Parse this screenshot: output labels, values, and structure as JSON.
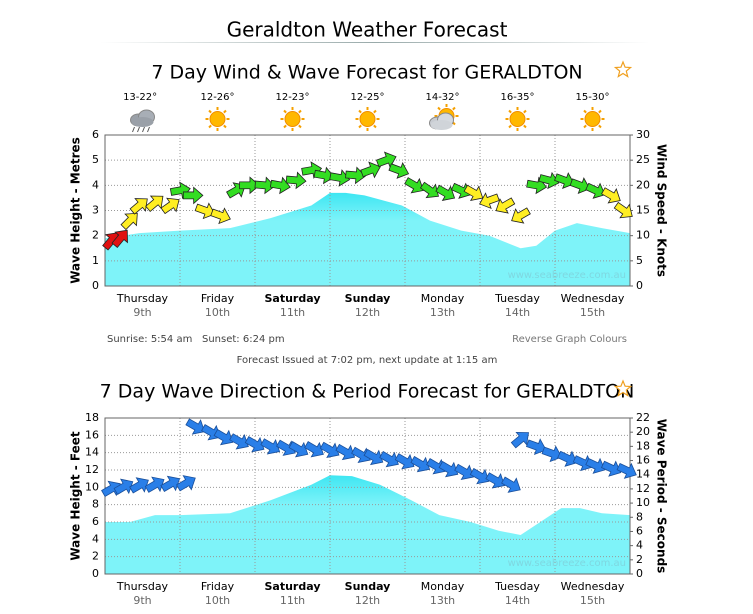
{
  "header": {
    "title": "Geraldton Weather Forecast"
  },
  "chart_data": [
    {
      "type": "wind-wave",
      "title": "7 Day Wind & Wave Forecast for GERALDTON",
      "temperatures": [
        "13-22°",
        "12-26°",
        "12-23°",
        "12-25°",
        "14-32°",
        "16-35°",
        "15-30°"
      ],
      "icons": [
        "storm",
        "sun",
        "sun",
        "sun",
        "cloud",
        "sun",
        "sun"
      ],
      "categories": [
        "Thursday",
        "Friday",
        "Saturday",
        "Sunday",
        "Monday",
        "Tuesday",
        "Wednesday"
      ],
      "dates": [
        "9th",
        "10th",
        "11th",
        "12th",
        "13th",
        "14th",
        "15th"
      ],
      "bold": [
        false,
        false,
        true,
        true,
        false,
        false,
        false
      ],
      "xlim": [
        0,
        168
      ],
      "ylim": [
        0,
        6
      ],
      "yticks": [
        0,
        1,
        2,
        3,
        4,
        5,
        6
      ],
      "y2lim": [
        0,
        30
      ],
      "y2ticks": [
        0,
        5,
        10,
        15,
        20,
        25,
        30
      ],
      "ylabel": "Wave Height - Metres",
      "y2label": "Wind Speed - Knots",
      "watermark": "www.seabreeze.com.au",
      "series": [
        {
          "type": "area",
          "color": "#7ef3f9",
          "x": [
            0,
            11,
            24,
            40,
            53,
            66,
            72,
            77,
            83,
            95,
            104,
            114,
            123,
            133,
            138,
            144,
            151,
            159,
            168
          ],
          "values": [
            1.9,
            2.1,
            2.2,
            2.3,
            2.7,
            3.2,
            3.7,
            3.7,
            3.6,
            3.2,
            2.6,
            2.2,
            2.0,
            1.5,
            1.6,
            2.2,
            2.5,
            2.3,
            2.1
          ]
        },
        {
          "type": "arrows",
          "axis": "y2",
          "x": [
            2,
            5,
            8,
            11,
            16,
            21,
            24,
            28,
            32,
            37,
            42,
            46,
            51,
            56,
            61,
            66,
            70,
            75,
            80,
            85,
            90,
            94,
            99,
            104,
            109,
            114,
            118,
            123,
            128,
            133,
            138,
            142,
            147,
            152,
            157,
            162,
            166
          ],
          "values": [
            9,
            9.5,
            13,
            16,
            16.5,
            16,
            19,
            18,
            15,
            14,
            19,
            20,
            20,
            20,
            21,
            23,
            22,
            21.5,
            22,
            23,
            25,
            23,
            20,
            19,
            18.5,
            19,
            18.5,
            17,
            16,
            14,
            20,
            21,
            21,
            20,
            19,
            18,
            15
          ],
          "colors": [
            "#e01010",
            "#e01010",
            "#ffee22",
            "#ffee22",
            "#ffee22",
            "#ffee22",
            "#33dd22",
            "#33dd22",
            "#ffee22",
            "#ffee22",
            "#33dd22",
            "#33dd22",
            "#33dd22",
            "#33dd22",
            "#33dd22",
            "#33dd22",
            "#33dd22",
            "#33dd22",
            "#33dd22",
            "#33dd22",
            "#33dd22",
            "#33dd22",
            "#33dd22",
            "#33dd22",
            "#33dd22",
            "#33dd22",
            "#ffee22",
            "#ffee22",
            "#ffee22",
            "#ffee22",
            "#33dd22",
            "#33dd22",
            "#33dd22",
            "#33dd22",
            "#33dd22",
            "#ffee22",
            "#ffee22"
          ],
          "directions": [
            -50,
            -50,
            -45,
            -40,
            -40,
            -35,
            -10,
            0,
            20,
            20,
            -30,
            0,
            5,
            10,
            5,
            -10,
            10,
            10,
            5,
            -20,
            -20,
            20,
            30,
            35,
            30,
            25,
            30,
            160,
            150,
            150,
            10,
            15,
            20,
            20,
            25,
            30,
            35
          ]
        }
      ],
      "sunrise": "Sunrise: 5:54 am",
      "sunset": "Sunset: 6:24 pm",
      "reverse_link": "Reverse Graph Colours",
      "issued": "Forecast Issued at 7:02 pm, next update at 1:15 am"
    },
    {
      "type": "wave-period",
      "title": "7 Day Wave Direction & Period Forecast for GERALDTON",
      "categories": [
        "Thursday",
        "Friday",
        "Saturday",
        "Sunday",
        "Monday",
        "Tuesday",
        "Wednesday"
      ],
      "dates": [
        "9th",
        "10th",
        "11th",
        "12th",
        "13th",
        "14th",
        "15th"
      ],
      "bold": [
        false,
        false,
        true,
        true,
        false,
        false,
        false
      ],
      "xlim": [
        0,
        168
      ],
      "ylim": [
        0,
        18
      ],
      "yticks": [
        0,
        2,
        4,
        6,
        8,
        10,
        12,
        14,
        16,
        18
      ],
      "y2lim": [
        0,
        22
      ],
      "y2ticks": [
        0,
        2,
        4,
        6,
        8,
        10,
        12,
        14,
        16,
        18,
        20,
        22
      ],
      "ylabel": "Wave Height - Feet",
      "y2label": "Wave Period - Seconds",
      "watermark": "www.seabreeze.com.au",
      "series": [
        {
          "type": "area",
          "color": "#7ef3f9",
          "x": [
            0,
            8,
            16,
            24,
            40,
            53,
            66,
            72,
            79,
            88,
            98,
            107,
            117,
            126,
            133,
            138,
            146,
            152,
            159,
            168
          ],
          "values": [
            6,
            6,
            6.8,
            6.8,
            7,
            8.5,
            10.3,
            11.4,
            11.3,
            10.3,
            8.5,
            6.8,
            6,
            5,
            4.5,
            5.7,
            7.6,
            7.6,
            7,
            6.8
          ]
        },
        {
          "type": "arrows",
          "axis": "y2",
          "color": "#2a7fe8",
          "x": [
            2,
            6,
            11,
            16,
            21,
            26,
            29,
            34,
            38,
            43,
            48,
            53,
            58,
            62,
            67,
            72,
            77,
            82,
            86,
            91,
            96,
            101,
            106,
            110,
            115,
            120,
            125,
            130,
            133,
            138,
            143,
            148,
            153,
            157,
            162,
            167
          ],
          "values": [
            12,
            12.3,
            12.5,
            12.6,
            12.7,
            12.8,
            20.8,
            20,
            19.3,
            18.7,
            18.3,
            18,
            17.8,
            17.6,
            17.6,
            17.5,
            17.2,
            16.8,
            16.5,
            16.2,
            15.9,
            15.5,
            15.2,
            14.8,
            14.4,
            13.8,
            13.2,
            12.6,
            19,
            18,
            17,
            16.3,
            15.7,
            15.3,
            14.9,
            14.6
          ],
          "directions": [
            -30,
            -30,
            -30,
            -30,
            -30,
            -30,
            30,
            30,
            30,
            30,
            30,
            30,
            30,
            30,
            30,
            30,
            30,
            30,
            30,
            30,
            30,
            30,
            30,
            30,
            30,
            30,
            30,
            30,
            -40,
            20,
            20,
            25,
            25,
            25,
            25,
            25
          ]
        }
      ]
    }
  ]
}
